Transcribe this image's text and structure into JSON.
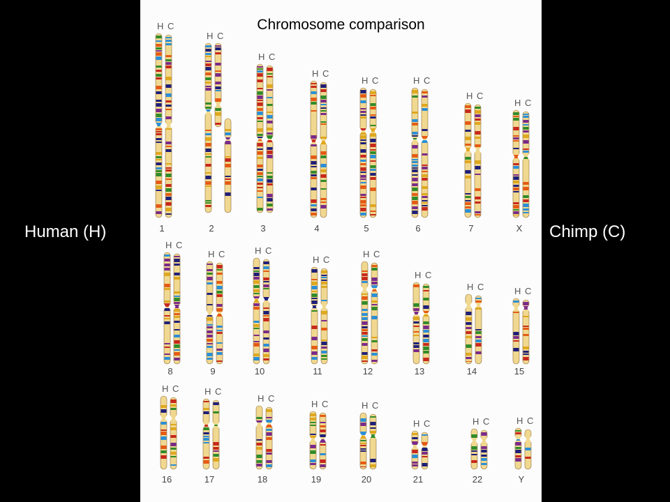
{
  "labels": {
    "left": "Human (H)",
    "right": "Chimp (C)"
  },
  "title": "Chromosome comparison",
  "pair_letters": [
    "H",
    "C"
  ],
  "chromosomes": [
    {
      "id": "1"
    },
    {
      "id": "2"
    },
    {
      "id": "3"
    },
    {
      "id": "4"
    },
    {
      "id": "5"
    },
    {
      "id": "6"
    },
    {
      "id": "7"
    },
    {
      "id": "X"
    },
    {
      "id": "8"
    },
    {
      "id": "9"
    },
    {
      "id": "10"
    },
    {
      "id": "11"
    },
    {
      "id": "12"
    },
    {
      "id": "13"
    },
    {
      "id": "14"
    },
    {
      "id": "15"
    },
    {
      "id": "16"
    },
    {
      "id": "17"
    },
    {
      "id": "18"
    },
    {
      "id": "19"
    },
    {
      "id": "20"
    },
    {
      "id": "21"
    },
    {
      "id": "22"
    },
    {
      "id": "Y"
    }
  ],
  "band_colors": [
    "#c8281e",
    "#e0a81e",
    "#2f8c2a",
    "#7a2a8a",
    "#1f1f7a",
    "#e65a14",
    "#2a8fd8"
  ],
  "base_color": "#f0d890"
}
